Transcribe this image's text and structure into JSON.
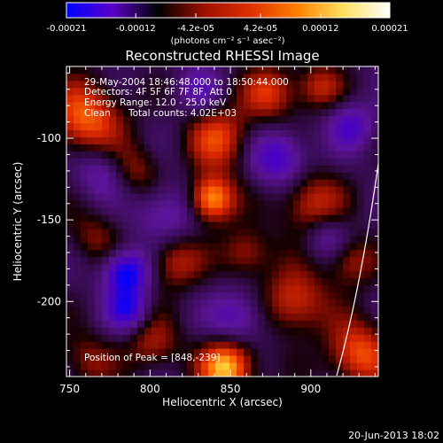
{
  "chart_data": {
    "type": "heatmap",
    "title": "Reconstructed RHESSI Image",
    "xlabel": "Heliocentric X (arcsec)",
    "ylabel": "Heliocentric Y (arcsec)",
    "xlim": [
      748,
      942
    ],
    "ylim": [
      -246,
      -56
    ],
    "x_ticks": [
      "750",
      "800",
      "850",
      "900"
    ],
    "x_tick_values": [
      750,
      800,
      850,
      900
    ],
    "y_ticks": [
      "-100",
      "-150",
      "-200"
    ],
    "y_tick_values": [
      -100,
      -150,
      -200
    ],
    "colorbar": {
      "ticks": [
        "-0.00021",
        "-0.00012",
        "-4.2e-05",
        "4.2e-05",
        "0.00012",
        "0.00021"
      ],
      "tick_values": [
        -0.00021,
        -0.00012,
        -4.2e-05,
        4.2e-05,
        0.00012,
        0.00021
      ],
      "range": [
        -0.00021,
        0.00021
      ],
      "units_label": "(photons cm⁻² s⁻¹ asec⁻²)",
      "colors": [
        "#0000ff",
        "#5a00c8",
        "#000000",
        "#a01000",
        "#e03000",
        "#ff8000",
        "#ffe060",
        "#ffffff"
      ]
    },
    "annotations": {
      "time_range": "29-May-2004 18:46:48.000 to 18:50:44.000",
      "detectors": "Detectors: 4F 5F 6F 7F 8F, Att 0",
      "energy_range": "Energy Range: 12.0 - 25.0 keV",
      "method": "Clean",
      "total_counts": "Total counts: 4.02E+03",
      "peak_position": "Position of Peak = [848,-239]"
    },
    "sources": [
      {
        "x": 838,
        "y": -137,
        "value": 0.00021,
        "r": 10
      },
      {
        "x": 848,
        "y": -240,
        "value": 0.00021,
        "r": 12
      },
      {
        "x": 760,
        "y": -88,
        "value": 0.00016,
        "r": 16
      },
      {
        "x": 843,
        "y": -100,
        "value": 0.00013,
        "r": 14
      },
      {
        "x": 875,
        "y": -72,
        "value": 0.00012,
        "r": 12
      },
      {
        "x": 905,
        "y": -68,
        "value": 0.0001,
        "r": 10
      },
      {
        "x": 815,
        "y": -175,
        "value": 0.00011,
        "r": 12
      },
      {
        "x": 860,
        "y": -170,
        "value": 0.0001,
        "r": 11
      },
      {
        "x": 790,
        "y": -120,
        "value": 9e-05,
        "r": 12
      },
      {
        "x": 900,
        "y": -140,
        "value": 0.00012,
        "r": 14
      },
      {
        "x": 890,
        "y": -200,
        "value": 0.00013,
        "r": 14
      },
      {
        "x": 925,
        "y": -175,
        "value": 0.0001,
        "r": 11
      },
      {
        "x": 930,
        "y": -232,
        "value": 0.00015,
        "r": 14
      },
      {
        "x": 802,
        "y": -226,
        "value": 9e-05,
        "r": 12
      },
      {
        "x": 760,
        "y": -236,
        "value": 8e-05,
        "r": 12
      },
      {
        "x": 765,
        "y": -160,
        "value": 7e-05,
        "r": 12
      },
      {
        "x": 880,
        "y": -112,
        "value": -0.00013,
        "r": 12
      },
      {
        "x": 925,
        "y": -92,
        "value": -0.0001,
        "r": 10
      },
      {
        "x": 785,
        "y": -182,
        "value": -0.00018,
        "r": 10
      },
      {
        "x": 786,
        "y": -205,
        "value": -0.00013,
        "r": 9
      },
      {
        "x": 770,
        "y": -120,
        "value": -9e-05,
        "r": 12
      },
      {
        "x": 810,
        "y": -145,
        "value": -9e-05,
        "r": 14
      },
      {
        "x": 855,
        "y": -210,
        "value": -0.0001,
        "r": 12
      },
      {
        "x": 910,
        "y": -160,
        "value": -8e-05,
        "r": 10
      },
      {
        "x": 830,
        "y": -70,
        "value": -7e-05,
        "r": 10
      }
    ]
  },
  "footer": {
    "date": "20-Jun-2013 18:02"
  }
}
